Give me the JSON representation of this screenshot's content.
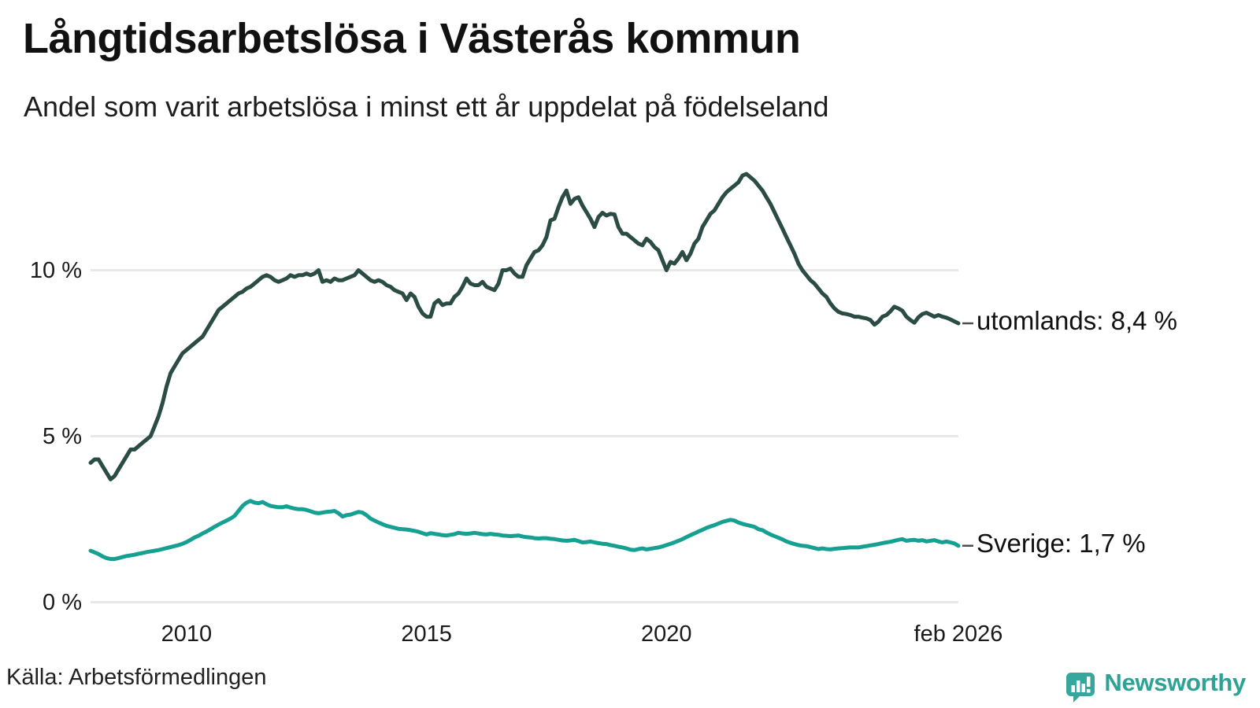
{
  "header": {
    "title": "Långtidsarbetslösa i Västerås kommun",
    "subtitle": "Andel som varit arbetslösa i minst ett år uppdelat på födelseland"
  },
  "footer": {
    "source": "Källa: Arbetsförmedlingen",
    "brand_name": "Newsworthy"
  },
  "colors": {
    "utomlands_line": "#2b4c44",
    "sverige_line": "#16a091",
    "gridline": "#e8e8e8",
    "connector": "#4d4d4d",
    "brand_teal": "#35a79c"
  },
  "chart_data": {
    "type": "line",
    "title": "Långtidsarbetslösa i Västerås kommun",
    "subtitle": "Andel som varit arbetslösa i minst ett år uppdelat på födelseland",
    "unit": "%",
    "x_start": "2008-01",
    "x_end": "2026-02",
    "x_interval": "monthly",
    "ylim": [
      0,
      13.5
    ],
    "grid": "horizontal",
    "legend_position": "right-end-labels",
    "y_ticks": [
      {
        "label": "10 %",
        "value": 10
      },
      {
        "label": "5 %",
        "value": 5
      },
      {
        "label": "0 %",
        "value": 0
      }
    ],
    "x_ticks": [
      {
        "label": "2010",
        "month_index": 24
      },
      {
        "label": "2015",
        "month_index": 84
      },
      {
        "label": "2020",
        "month_index": 144
      },
      {
        "label": "feb 2026",
        "month_index": 217
      }
    ],
    "series": [
      {
        "name": "utomlands",
        "end_label": "utomlands: 8,4 %",
        "end_value": "8,4 %",
        "color": "#2b4c44",
        "values": [
          4.2,
          4.3,
          4.3,
          4.1,
          3.9,
          3.7,
          3.8,
          4.0,
          4.2,
          4.4,
          4.6,
          4.6,
          4.7,
          4.8,
          4.9,
          5.0,
          5.3,
          5.6,
          6.0,
          6.5,
          6.9,
          7.1,
          7.3,
          7.5,
          7.6,
          7.7,
          7.8,
          7.9,
          8.0,
          8.2,
          8.4,
          8.6,
          8.8,
          8.9,
          9.0,
          9.1,
          9.2,
          9.3,
          9.35,
          9.45,
          9.5,
          9.6,
          9.7,
          9.8,
          9.85,
          9.8,
          9.7,
          9.65,
          9.7,
          9.75,
          9.85,
          9.8,
          9.85,
          9.85,
          9.9,
          9.85,
          9.9,
          10.0,
          9.65,
          9.7,
          9.65,
          9.75,
          9.7,
          9.7,
          9.75,
          9.8,
          9.85,
          10.0,
          9.9,
          9.8,
          9.7,
          9.65,
          9.7,
          9.65,
          9.55,
          9.5,
          9.4,
          9.35,
          9.3,
          9.1,
          9.3,
          9.2,
          8.9,
          8.7,
          8.6,
          8.6,
          9.0,
          9.1,
          8.95,
          9.0,
          9.0,
          9.2,
          9.3,
          9.5,
          9.75,
          9.6,
          9.55,
          9.55,
          9.65,
          9.5,
          9.45,
          9.4,
          9.6,
          10.0,
          10.0,
          10.05,
          9.9,
          9.8,
          9.8,
          10.15,
          10.35,
          10.55,
          10.6,
          10.75,
          11.0,
          11.5,
          11.55,
          11.9,
          12.2,
          12.4,
          12.0,
          12.15,
          12.2,
          11.95,
          11.75,
          11.55,
          11.3,
          11.6,
          11.73,
          11.65,
          11.7,
          11.68,
          11.3,
          11.1,
          11.1,
          11.0,
          10.9,
          10.8,
          10.75,
          10.95,
          10.85,
          10.7,
          10.6,
          10.3,
          10.0,
          10.25,
          10.2,
          10.35,
          10.55,
          10.3,
          10.5,
          10.8,
          10.95,
          11.3,
          11.5,
          11.7,
          11.8,
          12.0,
          12.2,
          12.35,
          12.45,
          12.55,
          12.65,
          12.85,
          12.9,
          12.8,
          12.7,
          12.55,
          12.4,
          12.2,
          12.0,
          11.75,
          11.5,
          11.25,
          11.0,
          10.75,
          10.5,
          10.2,
          10.0,
          9.85,
          9.7,
          9.6,
          9.45,
          9.3,
          9.2,
          9.0,
          8.85,
          8.75,
          8.7,
          8.68,
          8.65,
          8.6,
          8.6,
          8.57,
          8.55,
          8.5,
          8.36,
          8.45,
          8.6,
          8.65,
          8.76,
          8.9,
          8.85,
          8.78,
          8.6,
          8.5,
          8.42,
          8.58,
          8.68,
          8.72,
          8.66,
          8.6,
          8.65,
          8.6,
          8.57,
          8.52,
          8.46,
          8.4
        ]
      },
      {
        "name": "Sverige",
        "end_label": "Sverige: 1,7 %",
        "end_value": "1,7 %",
        "color": "#16a091",
        "values": [
          1.55,
          1.5,
          1.45,
          1.38,
          1.33,
          1.3,
          1.3,
          1.33,
          1.36,
          1.39,
          1.41,
          1.43,
          1.46,
          1.48,
          1.51,
          1.53,
          1.55,
          1.57,
          1.6,
          1.63,
          1.66,
          1.69,
          1.72,
          1.76,
          1.81,
          1.88,
          1.95,
          2.0,
          2.07,
          2.13,
          2.2,
          2.27,
          2.34,
          2.4,
          2.46,
          2.52,
          2.6,
          2.75,
          2.9,
          3.0,
          3.05,
          3.0,
          2.98,
          3.02,
          2.95,
          2.9,
          2.88,
          2.86,
          2.86,
          2.89,
          2.85,
          2.82,
          2.8,
          2.8,
          2.78,
          2.74,
          2.7,
          2.68,
          2.7,
          2.72,
          2.73,
          2.75,
          2.68,
          2.58,
          2.62,
          2.64,
          2.68,
          2.72,
          2.7,
          2.62,
          2.52,
          2.46,
          2.4,
          2.35,
          2.3,
          2.27,
          2.24,
          2.21,
          2.2,
          2.19,
          2.17,
          2.15,
          2.12,
          2.08,
          2.04,
          2.08,
          2.06,
          2.04,
          2.02,
          2.01,
          2.03,
          2.05,
          2.09,
          2.07,
          2.06,
          2.07,
          2.09,
          2.07,
          2.05,
          2.04,
          2.06,
          2.04,
          2.03,
          2.01,
          2.0,
          1.99,
          2.0,
          2.01,
          1.98,
          1.96,
          1.95,
          1.93,
          1.92,
          1.93,
          1.93,
          1.91,
          1.9,
          1.88,
          1.86,
          1.85,
          1.86,
          1.88,
          1.84,
          1.8,
          1.81,
          1.83,
          1.8,
          1.78,
          1.76,
          1.75,
          1.72,
          1.7,
          1.67,
          1.65,
          1.62,
          1.58,
          1.57,
          1.6,
          1.62,
          1.59,
          1.61,
          1.63,
          1.65,
          1.68,
          1.72,
          1.76,
          1.8,
          1.85,
          1.9,
          1.96,
          2.02,
          2.07,
          2.13,
          2.18,
          2.24,
          2.28,
          2.32,
          2.37,
          2.42,
          2.45,
          2.48,
          2.46,
          2.4,
          2.36,
          2.33,
          2.3,
          2.27,
          2.2,
          2.17,
          2.1,
          2.04,
          1.99,
          1.94,
          1.89,
          1.83,
          1.79,
          1.75,
          1.72,
          1.7,
          1.69,
          1.66,
          1.63,
          1.6,
          1.62,
          1.6,
          1.59,
          1.61,
          1.62,
          1.63,
          1.64,
          1.65,
          1.65,
          1.65,
          1.67,
          1.69,
          1.71,
          1.73,
          1.75,
          1.78,
          1.8,
          1.82,
          1.85,
          1.88,
          1.9,
          1.85,
          1.87,
          1.88,
          1.85,
          1.87,
          1.83,
          1.85,
          1.87,
          1.83,
          1.8,
          1.83,
          1.8,
          1.77,
          1.7
        ]
      }
    ]
  }
}
